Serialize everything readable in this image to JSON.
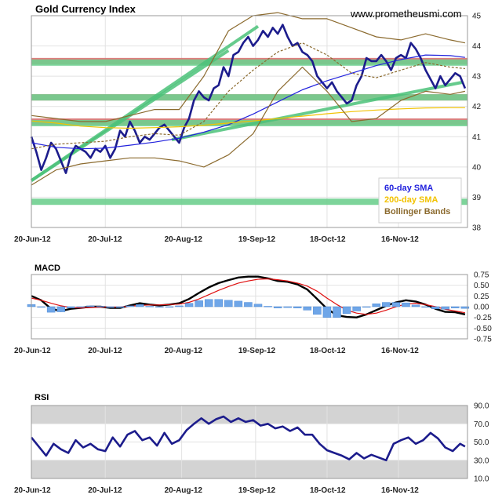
{
  "header": {
    "title": "Gold Currency Index",
    "site": "www.prometheusmi.com"
  },
  "chart_data": [
    {
      "type": "line",
      "title": "Gold Currency Index",
      "x_tick_labels": [
        "20-Jun-12",
        "20-Jul-12",
        "20-Aug-12",
        "19-Sep-12",
        "18-Oct-12",
        "16-Nov-12"
      ],
      "x_tick_days": [
        0,
        30,
        61,
        91,
        120,
        149
      ],
      "y_ticks": [
        38,
        39,
        40,
        41,
        42,
        43,
        44,
        45
      ],
      "ylim": [
        38,
        45
      ],
      "xlim_days": [
        0,
        177
      ],
      "grid": true,
      "legend_position": "bottom-right",
      "legend": [
        {
          "label": "60-day SMA",
          "color": "#2222dd"
        },
        {
          "label": "200-day SMA",
          "color": "#f2c200"
        },
        {
          "label": "Bollinger Bands",
          "color": "#8b6a2e"
        }
      ],
      "horizontal_levels": [
        {
          "value": 43.5,
          "color": "#d97070",
          "kind": "resistance"
        },
        {
          "value": 42.3,
          "color": "#d97070",
          "kind": "resistance"
        },
        {
          "value": 41.5,
          "color": "#d97070",
          "kind": "resistance"
        },
        {
          "value": 43.45,
          "color": "#6fcf8f",
          "kind": "support"
        },
        {
          "value": 42.3,
          "color": "#6fcf8f",
          "kind": "support"
        },
        {
          "value": 41.45,
          "color": "#6fcf8f",
          "kind": "support"
        },
        {
          "value": 38.85,
          "color": "#6fcf8f",
          "kind": "support"
        }
      ],
      "trendlines": [
        {
          "x": [
            0,
            92
          ],
          "y": [
            39.55,
            44.65
          ]
        },
        {
          "x": [
            0,
            80
          ],
          "y": [
            39.55,
            43.85
          ]
        },
        {
          "x": [
            57,
            175
          ],
          "y": [
            40.9,
            42.8
          ]
        }
      ],
      "series": [
        {
          "name": "Gold Currency Index",
          "color": "#1c1c8c",
          "x": [
            0,
            2,
            4,
            6,
            8,
            10,
            12,
            14,
            16,
            18,
            20,
            22,
            24,
            26,
            28,
            30,
            32,
            34,
            36,
            38,
            40,
            42,
            44,
            46,
            48,
            50,
            52,
            54,
            56,
            58,
            60,
            62,
            64,
            66,
            68,
            70,
            72,
            74,
            76,
            78,
            80,
            82,
            84,
            86,
            88,
            90,
            92,
            94,
            96,
            98,
            100,
            102,
            104,
            106,
            108,
            110,
            112,
            114,
            116,
            118,
            120,
            122,
            124,
            126,
            128,
            130,
            132,
            134,
            136,
            138,
            140,
            142,
            144,
            146,
            148,
            150,
            152,
            154,
            156,
            158,
            160,
            162,
            164,
            166,
            168,
            170,
            172,
            174,
            176
          ],
          "y": [
            41.0,
            40.5,
            39.9,
            40.3,
            40.8,
            40.6,
            40.2,
            39.8,
            40.4,
            40.7,
            40.6,
            40.5,
            40.3,
            40.6,
            40.5,
            40.7,
            40.3,
            40.6,
            41.2,
            41.0,
            41.5,
            41.2,
            40.8,
            41.0,
            40.9,
            41.1,
            41.3,
            41.4,
            41.2,
            41.0,
            40.8,
            41.3,
            41.6,
            42.2,
            42.5,
            42.3,
            42.2,
            42.6,
            42.7,
            43.3,
            43.0,
            43.7,
            43.8,
            44.1,
            44.3,
            44.0,
            44.2,
            44.5,
            44.3,
            44.6,
            44.4,
            44.7,
            44.3,
            44.0,
            44.1,
            43.8,
            43.7,
            43.5,
            43.0,
            42.8,
            42.6,
            42.8,
            42.5,
            42.3,
            42.1,
            42.2,
            42.7,
            43.0,
            43.6,
            43.5,
            43.5,
            43.7,
            43.5,
            43.2,
            43.6,
            43.7,
            43.6,
            44.1,
            43.9,
            43.6,
            43.2,
            42.9,
            42.6,
            43.0,
            42.7,
            42.9,
            43.1,
            43.0,
            42.6
          ]
        },
        {
          "name": "60-day SMA",
          "color": "#2222dd",
          "x": [
            0,
            10,
            20,
            30,
            40,
            50,
            60,
            70,
            80,
            90,
            100,
            110,
            120,
            130,
            140,
            150,
            160,
            170,
            176
          ],
          "y": [
            40.8,
            40.65,
            40.6,
            40.62,
            40.72,
            40.82,
            40.95,
            41.15,
            41.4,
            41.75,
            42.15,
            42.55,
            42.85,
            43.1,
            43.35,
            43.55,
            43.7,
            43.68,
            43.62
          ]
        },
        {
          "name": "200-day SMA",
          "color": "#f2c200",
          "x": [
            0,
            10,
            20,
            30,
            40,
            50,
            60,
            70,
            80,
            90,
            100,
            110,
            120,
            130,
            140,
            150,
            160,
            170,
            176
          ],
          "y": [
            41.52,
            41.45,
            41.35,
            41.3,
            41.28,
            41.3,
            41.33,
            41.38,
            41.45,
            41.52,
            41.6,
            41.68,
            41.76,
            41.83,
            41.88,
            41.92,
            41.95,
            41.96,
            41.96
          ]
        },
        {
          "name": "Bollinger Bands",
          "color": "#8b6a2e",
          "x": [
            0,
            10,
            20,
            30,
            40,
            50,
            60,
            70,
            80,
            90,
            100,
            110,
            120,
            130,
            140,
            150,
            160,
            170,
            176
          ],
          "y": [
            41.7,
            41.6,
            41.5,
            41.5,
            41.7,
            41.9,
            41.9,
            43.0,
            44.5,
            45.0,
            45.1,
            44.9,
            44.9,
            44.6,
            44.3,
            44.2,
            44.4,
            44.2,
            44.1
          ]
        },
        {
          "name": "Bollinger Bands",
          "color": "#8b6a2e",
          "x": [
            0,
            10,
            20,
            30,
            40,
            50,
            60,
            70,
            80,
            90,
            100,
            110,
            120,
            130,
            140,
            150,
            160,
            170,
            176
          ],
          "y": [
            39.4,
            39.9,
            40.1,
            40.2,
            40.3,
            40.3,
            40.2,
            40.0,
            40.4,
            41.1,
            42.5,
            43.3,
            42.5,
            41.5,
            41.6,
            42.2,
            42.5,
            42.4,
            42.5
          ]
        },
        {
          "name": "",
          "color": "#8b6a2e",
          "dashed": true,
          "x": [
            0,
            10,
            20,
            30,
            40,
            50,
            60,
            70,
            80,
            90,
            100,
            110,
            120,
            130,
            140,
            150,
            160,
            170,
            176
          ],
          "y": [
            40.6,
            40.75,
            40.8,
            40.85,
            41.0,
            41.1,
            41.05,
            41.5,
            42.5,
            43.2,
            43.8,
            44.1,
            43.7,
            43.1,
            42.95,
            43.2,
            43.45,
            43.3,
            43.25
          ]
        }
      ]
    },
    {
      "type": "line",
      "title": "MACD",
      "x_tick_labels": [
        "20-Jun-12",
        "20-Jul-12",
        "20-Aug-12",
        "19-Sep-12",
        "18-Oct-12",
        "16-Nov-12"
      ],
      "x_tick_days": [
        0,
        30,
        61,
        91,
        120,
        149
      ],
      "y_ticks": [
        0.75,
        0.5,
        0.25,
        0.0,
        -0.25,
        -0.5,
        -0.75
      ],
      "y_tick_labels": [
        "0.75",
        "0.50",
        "0.25",
        "0.00",
        "-0.25",
        "-0.50",
        "-0.75"
      ],
      "ylim": [
        -0.75,
        0.75
      ],
      "grid": true,
      "series": [
        {
          "name": "",
          "color": "#000000",
          "x": [
            0,
            4,
            8,
            12,
            16,
            20,
            24,
            28,
            32,
            36,
            40,
            44,
            48,
            52,
            56,
            60,
            64,
            68,
            72,
            76,
            80,
            84,
            88,
            92,
            96,
            100,
            104,
            108,
            112,
            116,
            120,
            124,
            128,
            132,
            136,
            140,
            144,
            148,
            152,
            156,
            160,
            164,
            168,
            172,
            176
          ],
          "y": [
            0.25,
            0.15,
            -0.05,
            -0.1,
            -0.05,
            -0.03,
            0.0,
            0.0,
            -0.03,
            -0.03,
            0.03,
            0.08,
            0.05,
            0.03,
            0.05,
            0.08,
            0.18,
            0.32,
            0.45,
            0.55,
            0.62,
            0.68,
            0.7,
            0.7,
            0.66,
            0.6,
            0.58,
            0.52,
            0.4,
            0.18,
            -0.05,
            -0.2,
            -0.24,
            -0.25,
            -0.18,
            -0.08,
            0.02,
            0.1,
            0.15,
            0.12,
            0.05,
            -0.05,
            -0.12,
            -0.13,
            -0.18
          ]
        },
        {
          "name": "",
          "color": "#e01010",
          "x": [
            0,
            4,
            8,
            12,
            16,
            20,
            24,
            28,
            32,
            36,
            40,
            44,
            48,
            52,
            56,
            60,
            64,
            68,
            72,
            76,
            80,
            84,
            88,
            92,
            96,
            100,
            104,
            108,
            112,
            116,
            120,
            124,
            128,
            132,
            136,
            140,
            144,
            148,
            152,
            156,
            160,
            164,
            168,
            172,
            176
          ],
          "y": [
            0.2,
            0.15,
            0.08,
            0.02,
            -0.02,
            -0.03,
            -0.02,
            -0.01,
            -0.01,
            -0.01,
            0.01,
            0.03,
            0.04,
            0.04,
            0.05,
            0.06,
            0.1,
            0.18,
            0.28,
            0.38,
            0.47,
            0.55,
            0.6,
            0.64,
            0.65,
            0.63,
            0.6,
            0.55,
            0.48,
            0.36,
            0.2,
            0.05,
            -0.08,
            -0.15,
            -0.18,
            -0.15,
            -0.08,
            0.0,
            0.06,
            0.08,
            0.05,
            0.0,
            -0.06,
            -0.1,
            -0.14
          ]
        },
        {
          "name": "",
          "type": "bar",
          "color": "#6fa6e8",
          "x": [
            0,
            4,
            8,
            12,
            16,
            20,
            24,
            28,
            32,
            36,
            40,
            44,
            48,
            52,
            56,
            60,
            64,
            68,
            72,
            76,
            80,
            84,
            88,
            92,
            96,
            100,
            104,
            108,
            112,
            116,
            120,
            124,
            128,
            132,
            136,
            140,
            144,
            148,
            152,
            156,
            160,
            164,
            168,
            172,
            176
          ],
          "y": [
            0.05,
            0.0,
            -0.13,
            -0.12,
            -0.03,
            0.0,
            0.02,
            0.01,
            -0.02,
            -0.02,
            0.02,
            0.05,
            0.01,
            -0.01,
            0.0,
            0.02,
            0.08,
            0.14,
            0.17,
            0.17,
            0.15,
            0.13,
            0.1,
            0.06,
            0.01,
            -0.03,
            -0.02,
            -0.03,
            -0.08,
            -0.18,
            -0.25,
            -0.25,
            -0.16,
            -0.1,
            0.0,
            0.07,
            0.1,
            0.1,
            0.09,
            0.04,
            0.0,
            -0.05,
            -0.06,
            -0.03,
            -0.04
          ]
        }
      ]
    },
    {
      "type": "line",
      "title": "RSI",
      "x_tick_labels": [
        "20-Jun-12",
        "20-Jul-12",
        "20-Aug-12",
        "19-Sep-12",
        "18-Oct-12",
        "16-Nov-12"
      ],
      "x_tick_days": [
        0,
        30,
        61,
        91,
        120,
        149
      ],
      "y_ticks": [
        90.0,
        70.0,
        50.0,
        30.0,
        10.0
      ],
      "y_tick_labels": [
        "90.0",
        "70.0",
        "50.0",
        "30.0",
        "10.0"
      ],
      "ylim": [
        10,
        90
      ],
      "grid": true,
      "bands": [
        {
          "from": 70,
          "to": 90
        },
        {
          "from": 10,
          "to": 30
        }
      ],
      "series": [
        {
          "name": "",
          "color": "#1c1c8c",
          "x": [
            0,
            3,
            6,
            9,
            12,
            15,
            18,
            21,
            24,
            27,
            30,
            33,
            36,
            39,
            42,
            45,
            48,
            51,
            54,
            57,
            60,
            63,
            66,
            69,
            72,
            75,
            78,
            81,
            84,
            87,
            90,
            93,
            96,
            99,
            102,
            105,
            108,
            111,
            114,
            117,
            120,
            123,
            126,
            129,
            132,
            135,
            138,
            141,
            144,
            147,
            150,
            153,
            156,
            159,
            162,
            165,
            168,
            171,
            174,
            176
          ],
          "y": [
            55,
            45,
            35,
            48,
            42,
            38,
            52,
            44,
            48,
            42,
            40,
            55,
            45,
            58,
            62,
            52,
            55,
            46,
            60,
            48,
            52,
            63,
            70,
            76,
            70,
            75,
            78,
            72,
            76,
            72,
            74,
            68,
            70,
            65,
            67,
            62,
            66,
            58,
            58,
            48,
            41,
            38,
            35,
            31,
            38,
            32,
            36,
            33,
            30,
            48,
            52,
            55,
            48,
            52,
            60,
            54,
            44,
            40,
            48,
            45
          ]
        }
      ]
    }
  ]
}
